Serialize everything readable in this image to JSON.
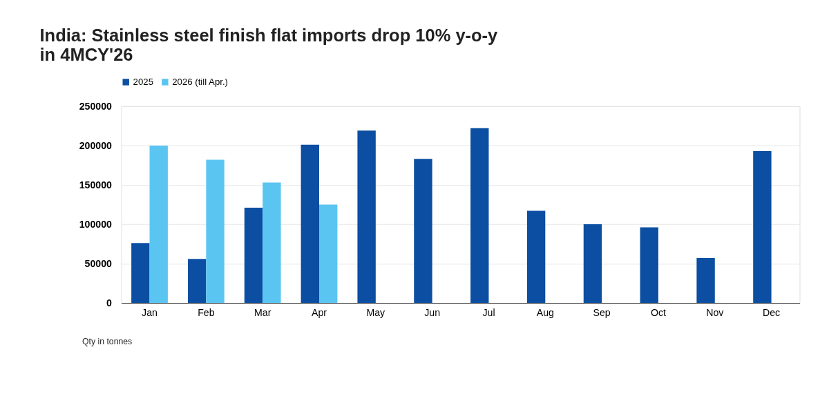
{
  "chart_data": {
    "type": "bar",
    "title": "India: Stainless steel finish flat imports drop 10% y-o-y in 4MCY'26",
    "categories": [
      "Jan",
      "Feb",
      "Mar",
      "Apr",
      "May",
      "Jun",
      "Jul",
      "Aug",
      "Sep",
      "Oct",
      "Nov",
      "Dec"
    ],
    "series": [
      {
        "name": "2025",
        "color": "#0b4ea2",
        "values": [
          76000,
          56000,
          121000,
          201000,
          219000,
          183000,
          222000,
          117000,
          100000,
          96000,
          57000,
          193000
        ]
      },
      {
        "name": "2026 (till Apr.)",
        "color": "#5bc5f2",
        "values": [
          200000,
          182000,
          153000,
          125000,
          null,
          null,
          null,
          null,
          null,
          null,
          null,
          null
        ]
      }
    ],
    "ylim": [
      0,
      250000
    ],
    "yticks": [
      0,
      50000,
      100000,
      150000,
      200000,
      250000
    ],
    "grid": "y",
    "legend": "top left",
    "annotations": [
      "Qty in tonnes"
    ]
  }
}
